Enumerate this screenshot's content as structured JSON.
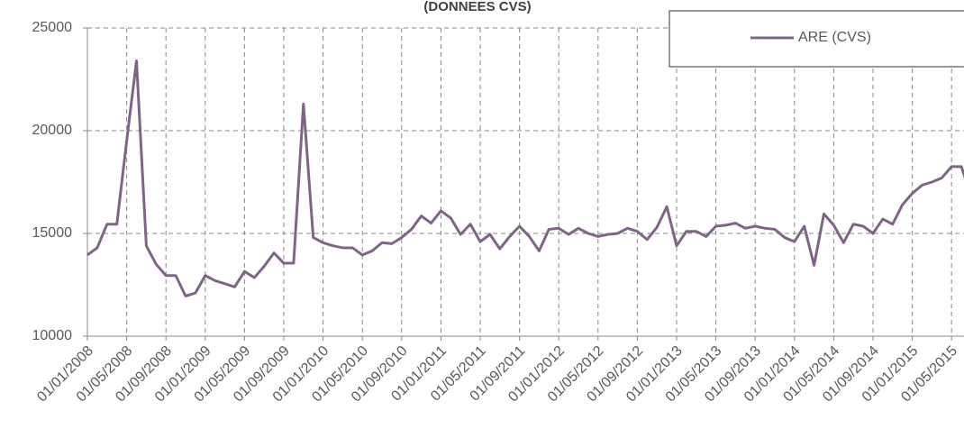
{
  "chart_data": {
    "type": "line",
    "title": "(DONNEES CVS)",
    "categories": [
      "01/01/2008",
      null,
      null,
      null,
      "01/05/2008",
      null,
      null,
      null,
      "01/09/2008",
      null,
      null,
      null,
      "01/01/2009",
      null,
      null,
      null,
      "01/05/2009",
      null,
      null,
      null,
      "01/09/2009",
      null,
      null,
      null,
      "01/01/2010",
      null,
      null,
      null,
      "01/05/2010",
      null,
      null,
      null,
      "01/09/2010",
      null,
      null,
      null,
      "01/01/2011",
      null,
      null,
      null,
      "01/05/2011",
      null,
      null,
      null,
      "01/09/2011",
      null,
      null,
      null,
      "01/01/2012",
      null,
      null,
      null,
      "01/05/2012",
      null,
      null,
      null,
      "01/09/2012",
      null,
      null,
      null,
      "01/01/2013",
      null,
      null,
      null,
      "01/05/2013",
      null,
      null,
      null,
      "01/09/2013",
      null,
      null,
      null,
      "01/01/2014",
      null,
      null,
      null,
      "01/05/2014",
      null,
      null,
      null,
      "01/09/2014",
      null,
      null,
      null,
      "01/01/2015",
      null,
      null,
      null,
      "01/05/2015",
      null,
      null
    ],
    "series": [
      {
        "name": "ARE (CVS)",
        "color": "#7f6585",
        "values": [
          13950,
          14300,
          15450,
          15450,
          19500,
          23400,
          14400,
          13500,
          12950,
          12950,
          11950,
          12100,
          12950,
          12700,
          12550,
          12400,
          13150,
          12850,
          13400,
          14050,
          13550,
          13550,
          21300,
          14800,
          14550,
          14400,
          14300,
          14300,
          13950,
          14150,
          14550,
          14500,
          14800,
          15200,
          15850,
          15500,
          16100,
          15750,
          14950,
          15450,
          14600,
          14950,
          14250,
          14850,
          15350,
          14850,
          14150,
          15200,
          15250,
          14950,
          15250,
          15000,
          14850,
          14950,
          15000,
          15250,
          15100,
          14700,
          15300,
          16300,
          14400,
          15100,
          15100,
          14850,
          15350,
          15400,
          15500,
          15250,
          15350,
          15250,
          15200,
          14800,
          14600,
          15350,
          13450,
          15950,
          15400,
          14550,
          15450,
          15350,
          15000,
          15700,
          15450,
          16400,
          16950,
          17350,
          17500,
          17700,
          18250,
          18250,
          16800
        ]
      }
    ],
    "ylim": [
      10000,
      25000
    ],
    "yticks": [
      10000,
      15000,
      20000,
      25000
    ],
    "grid": true,
    "legend": "upper right"
  }
}
